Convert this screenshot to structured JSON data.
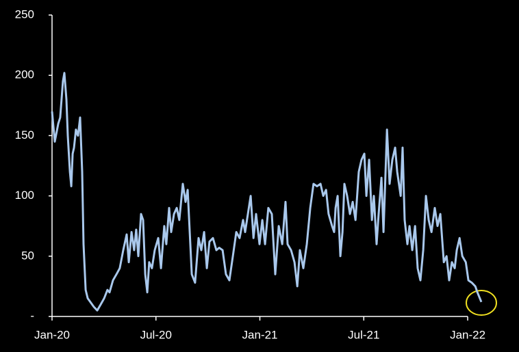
{
  "chart_data": {
    "type": "line",
    "x": [
      0,
      0.16,
      0.36,
      0.47,
      0.63,
      0.71,
      0.83,
      0.91,
      1.03,
      1.11,
      1.19,
      1.27,
      1.38,
      1.5,
      1.62,
      1.74,
      1.82,
      1.94,
      2.06,
      2.21,
      2.41,
      2.61,
      2.81,
      3.01,
      3.2,
      3.32,
      3.52,
      3.72,
      3.91,
      4.11,
      4.31,
      4.43,
      4.59,
      4.74,
      4.86,
      4.98,
      5.14,
      5.26,
      5.38,
      5.5,
      5.61,
      5.77,
      5.93,
      6.13,
      6.29,
      6.48,
      6.6,
      6.76,
      6.88,
      7.04,
      7.2,
      7.35,
      7.55,
      7.71,
      7.83,
      8.07,
      8.26,
      8.46,
      8.62,
      8.78,
      8.94,
      9.09,
      9.29,
      9.49,
      9.65,
      9.85,
      10.04,
      10.24,
      10.44,
      10.64,
      10.83,
      11.03,
      11.15,
      11.47,
      11.63,
      11.78,
      11.98,
      12.14,
      12.3,
      12.49,
      12.69,
      12.89,
      13.09,
      13.29,
      13.48,
      13.6,
      13.8,
      14.0,
      14.16,
      14.31,
      14.51,
      14.71,
      14.91,
      15.1,
      15.3,
      15.5,
      15.66,
      15.82,
      15.97,
      16.17,
      16.29,
      16.37,
      16.49,
      16.65,
      16.77,
      16.88,
      17.04,
      17.2,
      17.36,
      17.52,
      17.71,
      17.87,
      18.03,
      18.15,
      18.31,
      18.47,
      18.58,
      18.74,
      18.86,
      19.02,
      19.14,
      19.34,
      19.49,
      19.65,
      19.81,
      19.93,
      20.13,
      20.24,
      20.36,
      20.52,
      20.64,
      20.8,
      20.96,
      21.11,
      21.27,
      21.43,
      21.59,
      21.75,
      21.91,
      22.1,
      22.26,
      22.42,
      22.62,
      22.78,
      22.93,
      23.09,
      23.25,
      23.37,
      23.53,
      23.69,
      23.89,
      24.04,
      24.24,
      24.44,
      24.56,
      24.79
    ],
    "series": [
      {
        "color": "#a9c8ec",
        "values": [
          170,
          145,
          160,
          165,
          195,
          202,
          180,
          150,
          120,
          108,
          135,
          140,
          155,
          150,
          165,
          120,
          60,
          22,
          15,
          12,
          8,
          5,
          10,
          15,
          22,
          20,
          30,
          35,
          40,
          55,
          68,
          45,
          70,
          55,
          72,
          50,
          85,
          80,
          35,
          20,
          45,
          40,
          55,
          65,
          40,
          75,
          60,
          90,
          70,
          85,
          90,
          80,
          110,
          95,
          105,
          35,
          28,
          65,
          55,
          70,
          40,
          62,
          65,
          55,
          57,
          55,
          35,
          30,
          50,
          70,
          65,
          80,
          70,
          100,
          65,
          85,
          60,
          80,
          60,
          90,
          85,
          35,
          75,
          60,
          95,
          60,
          55,
          45,
          25,
          55,
          40,
          60,
          90,
          110,
          108,
          110,
          100,
          105,
          85,
          75,
          70,
          90,
          100,
          50,
          70,
          110,
          100,
          85,
          95,
          80,
          120,
          130,
          135,
          100,
          130,
          80,
          100,
          60,
          85,
          115,
          70,
          155,
          110,
          130,
          140,
          120,
          100,
          140,
          80,
          60,
          75,
          55,
          75,
          40,
          30,
          55,
          100,
          80,
          70,
          90,
          75,
          85,
          45,
          50,
          30,
          45,
          40,
          55,
          65,
          50,
          45,
          30,
          28,
          25,
          20,
          12
        ]
      }
    ],
    "xlim": [
      0,
      25.5
    ],
    "xticks": [
      {
        "value": 0,
        "label": "Jan-20"
      },
      {
        "value": 6,
        "label": "Jul-20"
      },
      {
        "value": 12,
        "label": "Jan-21"
      },
      {
        "value": 18,
        "label": "Jul-21"
      },
      {
        "value": 24,
        "label": "Jan-22"
      }
    ],
    "ylim": [
      0,
      250
    ],
    "yticks": [
      {
        "value": 0,
        "label": "-"
      },
      50,
      100,
      150,
      200,
      250
    ]
  }
}
